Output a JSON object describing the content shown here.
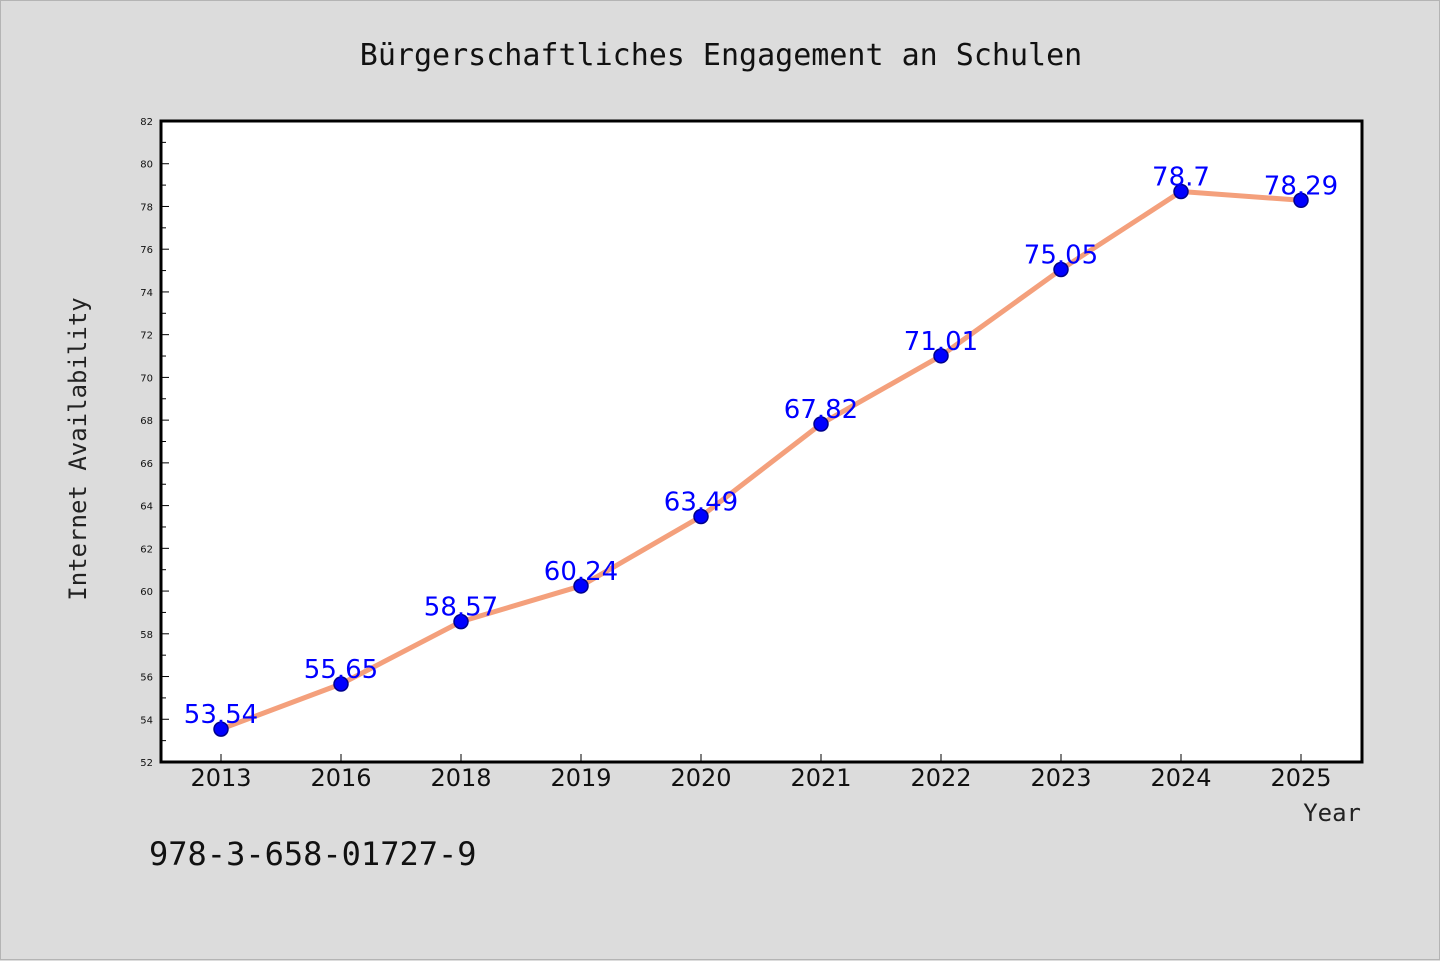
{
  "chart_data": {
    "type": "line",
    "title": "Bürgerschaftliches Engagement an Schulen",
    "xlabel": "Year",
    "ylabel": "Internet Availability",
    "categories": [
      "2013",
      "2016",
      "2018",
      "2019",
      "2020",
      "2021",
      "2022",
      "2023",
      "2024",
      "2025"
    ],
    "series": [
      {
        "values": [
          53.54,
          55.65,
          58.57,
          60.24,
          63.49,
          67.82,
          71.01,
          75.05,
          78.7,
          78.29
        ],
        "data_labels": [
          "53.54",
          "55.65",
          "58.57",
          "60.24",
          "63.49",
          "67.82",
          "71.01",
          "75.05",
          "78.7",
          "78.29"
        ]
      }
    ],
    "ylim": [
      52,
      82
    ],
    "yticks": [
      "52",
      "54",
      "56",
      "58",
      "60",
      "62",
      "64",
      "66",
      "68",
      "70",
      "72",
      "74",
      "76",
      "78",
      "80",
      "82"
    ],
    "grid": false,
    "legend": "none",
    "colors": {
      "line": "#f4a07c",
      "marker": "#0000ff",
      "marker_edge": "#00008b",
      "data_label": "#0000ff",
      "plot_background": "#ffffff",
      "page_background": "#dcdcdc"
    }
  },
  "footer": {
    "isbn": "978-3-658-01727-9"
  }
}
